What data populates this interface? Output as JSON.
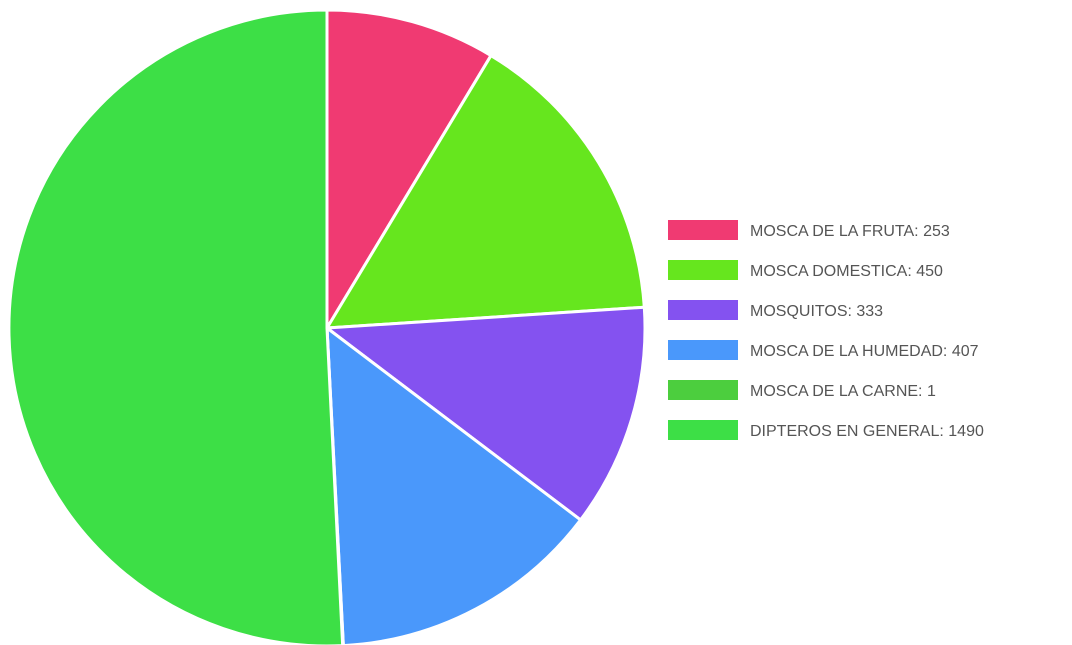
{
  "chart_data": {
    "type": "pie",
    "title": "",
    "legend_position": "right",
    "slices": [
      {
        "label": "MOSCA DE LA FRUTA",
        "value": 253,
        "color": "#f03a72",
        "legend_text": "MOSCA DE LA FRUTA: 253"
      },
      {
        "label": "MOSCA DOMESTICA",
        "value": 450,
        "color": "#66e61e",
        "legend_text": "MOSCA DOMESTICA: 450"
      },
      {
        "label": "MOSQUITOS",
        "value": 333,
        "color": "#8452f0",
        "legend_text": "MOSQUITOS: 333"
      },
      {
        "label": "MOSCA DE LA HUMEDAD",
        "value": 407,
        "color": "#4a98fb",
        "legend_text": "MOSCA DE LA HUMEDAD: 407"
      },
      {
        "label": "MOSCA DE LA CARNE",
        "value": 1,
        "color": "#4cce3e",
        "legend_text": "MOSCA DE LA CARNE: 1"
      },
      {
        "label": "DIPTEROS EN GENERAL",
        "value": 1490,
        "color": "#3ddf46",
        "legend_text": "DIPTEROS EN GENERAL: 1490"
      }
    ]
  }
}
